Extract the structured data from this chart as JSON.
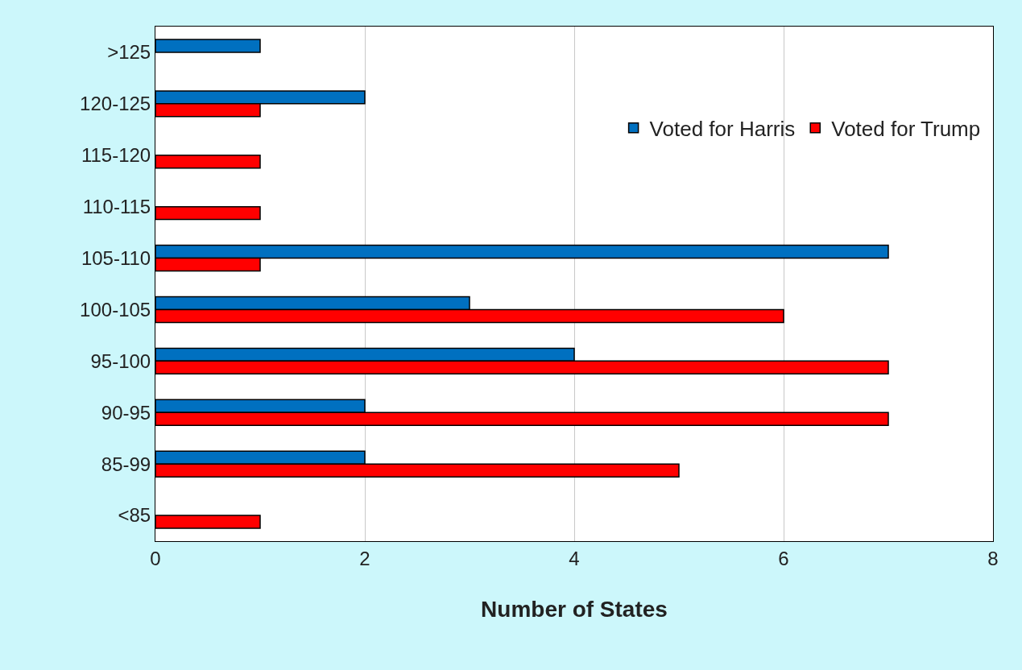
{
  "chart_data": {
    "type": "bar",
    "orientation": "horizontal",
    "xlabel": "Number of States",
    "categories": [
      ">125",
      "120-125",
      "115-120",
      "110-115",
      "105-110",
      "100-105",
      "95-100",
      "90-95",
      "85-99",
      "<85"
    ],
    "series": [
      {
        "name": "Voted for Harris",
        "color": "#0070c0",
        "values": [
          1,
          2,
          null,
          null,
          7,
          3,
          4,
          2,
          2,
          null
        ]
      },
      {
        "name": "Voted for Trump",
        "color": "#ff0000",
        "values": [
          null,
          1,
          1,
          1,
          1,
          6,
          7,
          7,
          5,
          1
        ]
      }
    ],
    "xlim": [
      0,
      8
    ],
    "xticks": [
      0,
      2,
      4,
      6,
      8
    ],
    "grid": "x",
    "legend": "top right"
  }
}
